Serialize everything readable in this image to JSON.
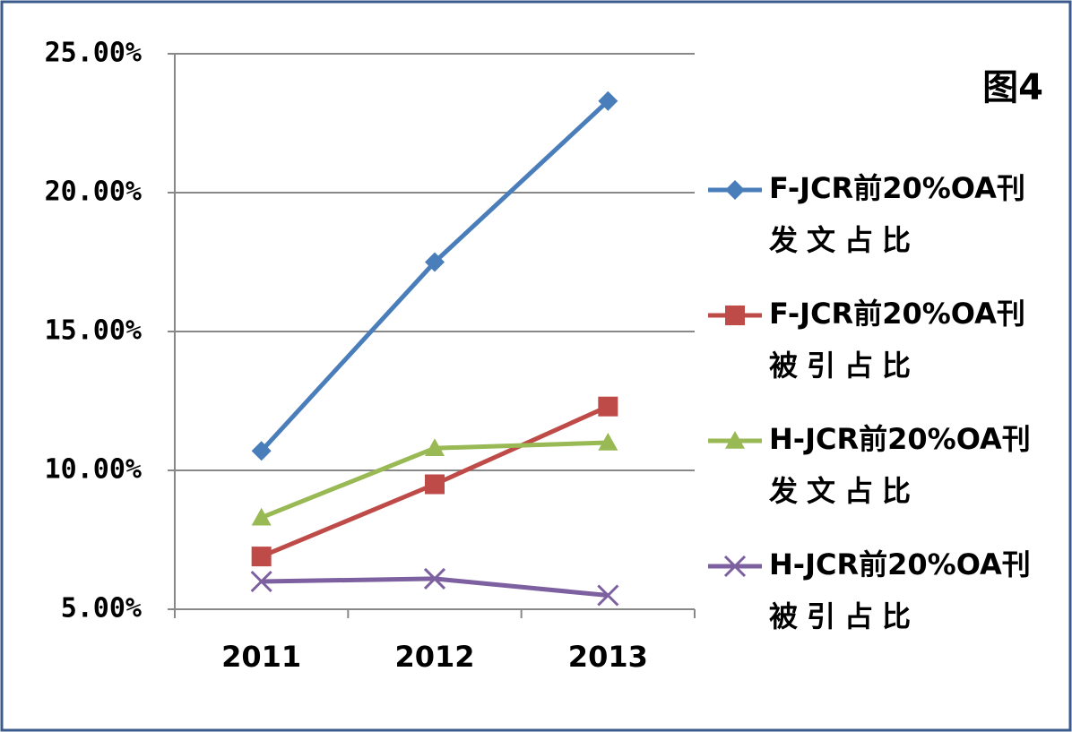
{
  "chart_data": {
    "type": "line",
    "title": "图4",
    "categories": [
      "2011",
      "2012",
      "2013"
    ],
    "series": [
      {
        "name": "F-JCR前20%OA刊发文占比",
        "color": "#4a7ebb",
        "marker": "diamond",
        "values": [
          10.7,
          17.5,
          23.3
        ]
      },
      {
        "name": "F-JCR前20%OA刊被引占比",
        "color": "#be4b48",
        "marker": "square",
        "values": [
          6.9,
          9.5,
          12.3
        ]
      },
      {
        "name": "H-JCR前20%OA刊发文占比",
        "color": "#98b954",
        "marker": "triangle",
        "values": [
          8.3,
          10.8,
          11.0
        ]
      },
      {
        "name": "H-JCR前20%OA刊被引占比",
        "color": "#7d60a0",
        "marker": "x",
        "values": [
          6.0,
          6.1,
          5.5
        ]
      }
    ],
    "ylim": [
      5,
      25
    ],
    "yticks": [
      {
        "value": 5,
        "label": "5.00%"
      },
      {
        "value": 10,
        "label": "10.00%"
      },
      {
        "value": 15,
        "label": "15.00%"
      },
      {
        "value": 20,
        "label": "20.00%"
      },
      {
        "value": 25,
        "label": "25.00%"
      }
    ],
    "grid": true,
    "legend": "right"
  }
}
